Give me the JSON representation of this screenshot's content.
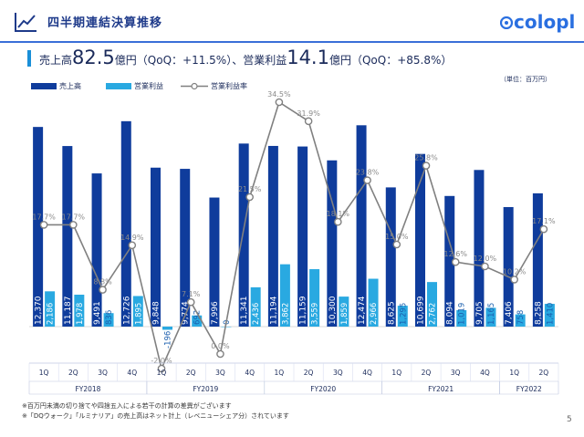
{
  "header": {
    "title": "四半期連結決算推移",
    "brand": "colopl",
    "subtitle_prefix": "売上高",
    "subtitle_revenue": "82.5",
    "subtitle_mid1": "億円（QoQ：+11.5%）、営業利益",
    "subtitle_profit": "14.1",
    "subtitle_mid2": "億円（QoQ：+85.8%）",
    "unit": "（単位：百万円）",
    "page_number": "5"
  },
  "colors": {
    "revenue": "#0f3c9c",
    "op_income": "#29a9e1",
    "margin_line": "#808080",
    "header_rule": "#3a6fd8"
  },
  "legend": {
    "revenue": "売上高",
    "op_income": "営業利益",
    "margin": "営業利益率"
  },
  "notes": [
    "※百万円未満の切り捨てや四捨五入による若干の計算の差異がございます",
    "※「DQウォーク」「ルミナリア」の売上高はネット計上（レベニューシェア分）されています"
  ],
  "chart_data": {
    "type": "bar",
    "categories": [
      "1Q",
      "2Q",
      "3Q",
      "4Q",
      "1Q",
      "2Q",
      "3Q",
      "4Q",
      "1Q",
      "2Q",
      "3Q",
      "4Q",
      "1Q",
      "2Q",
      "3Q",
      "4Q",
      "1Q",
      "2Q"
    ],
    "fiscal_years": [
      {
        "label": "FY2018",
        "start": 0,
        "count": 4
      },
      {
        "label": "FY2019",
        "start": 4,
        "count": 4
      },
      {
        "label": "FY2020",
        "start": 8,
        "count": 4
      },
      {
        "label": "FY2021",
        "start": 12,
        "count": 4
      },
      {
        "label": "FY2022",
        "start": 16,
        "count": 2
      }
    ],
    "series": [
      {
        "name": "売上高",
        "values": [
          12370,
          11187,
          9491,
          12726,
          9848,
          9774,
          7996,
          11341,
          11194,
          11159,
          10300,
          12474,
          8625,
          10699,
          8094,
          9705,
          7406,
          8258
        ],
        "labels": [
          "12,370",
          "11,187",
          "9,491",
          "12,726",
          "9,848",
          "9,774",
          "7,996",
          "11,341",
          "11,194",
          "11,159",
          "10,300",
          "12,474",
          "8,625",
          "10,699",
          "8,094",
          "9,705",
          "7,406",
          "8,258"
        ]
      },
      {
        "name": "営業利益",
        "values": [
          2186,
          1978,
          836,
          1895,
          -196,
          692,
          0,
          2436,
          3862,
          3559,
          1859,
          2966,
          1295,
          2762,
          1019,
          1165,
          758,
          1410
        ],
        "labels": [
          "2,186",
          "1,978",
          "836",
          "1,895",
          "-196",
          "692",
          "0",
          "2,436",
          "3,862",
          "3,559",
          "1,859",
          "2,966",
          "1,295",
          "2,762",
          "1,019",
          "1,165",
          "758",
          "1,410"
        ]
      }
    ],
    "margin_series": {
      "name": "営業利益率",
      "values": [
        17.7,
        17.7,
        8.8,
        14.9,
        -2.0,
        7.1,
        0.0,
        21.5,
        34.5,
        31.9,
        18.1,
        23.8,
        15.0,
        25.8,
        12.6,
        12.0,
        10.2,
        17.1
      ],
      "labels": [
        "17.7%",
        "17.7%",
        "8.8%",
        "14.9%",
        "-2.0%",
        "7.1%",
        "0.0%",
        "21.5%",
        "34.5%",
        "31.9%",
        "18.1%",
        "23.8%",
        "15.0%",
        "25.8%",
        "12.6%",
        "12.0%",
        "10.2%",
        "17.1%"
      ]
    },
    "title": "四半期連結決算推移",
    "xlabel": "",
    "ylabel": "百万円",
    "ylim": [
      -800,
      13500
    ]
  }
}
